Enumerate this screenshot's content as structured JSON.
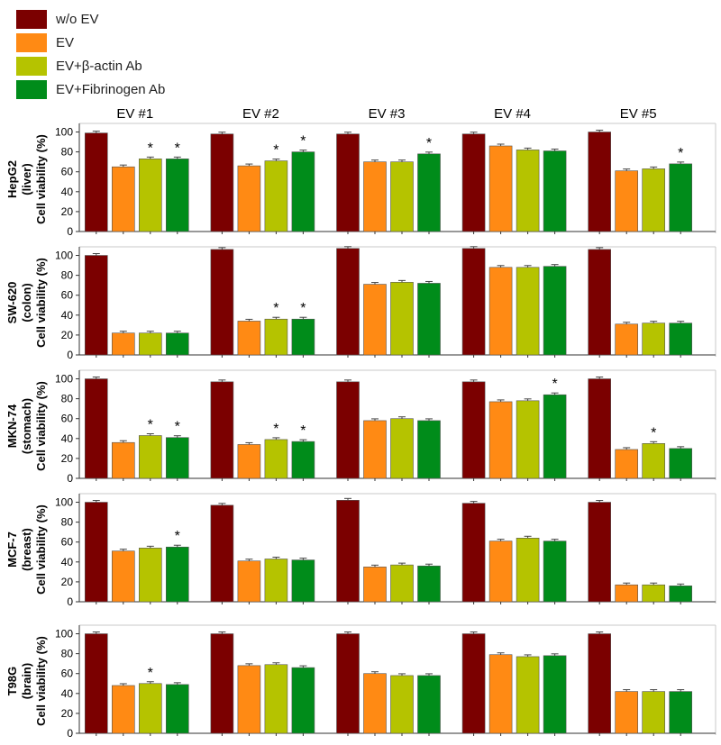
{
  "legend": [
    {
      "label": "w/o EV",
      "color": "#7b0000"
    },
    {
      "label": "EV",
      "color": "#ff8a14"
    },
    {
      "label": "EV+β-actin Ab",
      "color": "#b5c300"
    },
    {
      "label": "EV+Fibrinogen Ab",
      "color": "#008c1a"
    }
  ],
  "chart_data": {
    "type": "bar",
    "columns": [
      "EV #1",
      "EV #2",
      "EV #3",
      "EV #4",
      "EV #5"
    ],
    "series_names": [
      "w/o EV",
      "EV",
      "EV+β-actin Ab",
      "EV+Fibrinogen Ab"
    ],
    "series_colors": [
      "#7b0000",
      "#ff8a14",
      "#b5c300",
      "#008c1a"
    ],
    "ylim": [
      0,
      105
    ],
    "yticks": [
      0,
      20,
      40,
      60,
      80,
      100
    ],
    "significance_marker": "*",
    "panels": [
      {
        "ylabel": [
          "HepG2",
          "(liver)",
          "Cell viability (%)"
        ],
        "values": [
          [
            99,
            65,
            73,
            73
          ],
          [
            98,
            66,
            71,
            80
          ],
          [
            98,
            70,
            70,
            78
          ],
          [
            98,
            86,
            82,
            81
          ],
          [
            100,
            61,
            63,
            68
          ]
        ],
        "significant": [
          [
            false,
            false,
            true,
            true
          ],
          [
            false,
            false,
            true,
            true
          ],
          [
            false,
            false,
            false,
            true
          ],
          [
            false,
            false,
            false,
            false
          ],
          [
            false,
            false,
            false,
            true
          ]
        ]
      },
      {
        "ylabel": [
          "SW-620",
          "(colon)",
          "Cell viability (%)"
        ],
        "values": [
          [
            100,
            22,
            22,
            22
          ],
          [
            106,
            34,
            36,
            36
          ],
          [
            107,
            71,
            73,
            72
          ],
          [
            107,
            88,
            88,
            89
          ],
          [
            106,
            31,
            32,
            32
          ]
        ],
        "significant": [
          [
            false,
            false,
            false,
            false
          ],
          [
            false,
            false,
            true,
            true
          ],
          [
            false,
            false,
            false,
            false
          ],
          [
            false,
            false,
            false,
            false
          ],
          [
            false,
            false,
            false,
            false
          ]
        ]
      },
      {
        "ylabel": [
          "MKN-74",
          "(stomach)",
          "Cell viability (%)"
        ],
        "values": [
          [
            100,
            36,
            43,
            41
          ],
          [
            97,
            34,
            39,
            37
          ],
          [
            97,
            58,
            60,
            58
          ],
          [
            97,
            77,
            78,
            84
          ],
          [
            100,
            29,
            35,
            30
          ]
        ],
        "significant": [
          [
            false,
            false,
            true,
            true
          ],
          [
            false,
            false,
            true,
            true
          ],
          [
            false,
            false,
            false,
            false
          ],
          [
            false,
            false,
            false,
            true
          ],
          [
            false,
            false,
            true,
            false
          ]
        ]
      },
      {
        "ylabel": [
          "MCF-7",
          "(breast)",
          "Cell viability (%)"
        ],
        "values": [
          [
            100,
            51,
            54,
            55
          ],
          [
            97,
            41,
            43,
            42
          ],
          [
            102,
            35,
            37,
            36
          ],
          [
            99,
            61,
            64,
            61
          ],
          [
            100,
            17,
            17,
            16
          ]
        ],
        "significant": [
          [
            false,
            false,
            false,
            true
          ],
          [
            false,
            false,
            false,
            false
          ],
          [
            false,
            false,
            false,
            false
          ],
          [
            false,
            false,
            false,
            false
          ],
          [
            false,
            false,
            false,
            false
          ]
        ]
      },
      {
        "ylabel": [
          "T98G",
          "(brain)",
          "Cell viability (%)"
        ],
        "values": [
          [
            100,
            48,
            50,
            49
          ],
          [
            100,
            68,
            69,
            66
          ],
          [
            100,
            60,
            58,
            58
          ],
          [
            100,
            79,
            77,
            78
          ],
          [
            100,
            42,
            42,
            42
          ]
        ],
        "significant": [
          [
            false,
            false,
            true,
            false
          ],
          [
            false,
            false,
            false,
            false
          ],
          [
            false,
            false,
            false,
            false
          ],
          [
            false,
            false,
            false,
            false
          ],
          [
            false,
            false,
            false,
            false
          ]
        ]
      }
    ]
  }
}
